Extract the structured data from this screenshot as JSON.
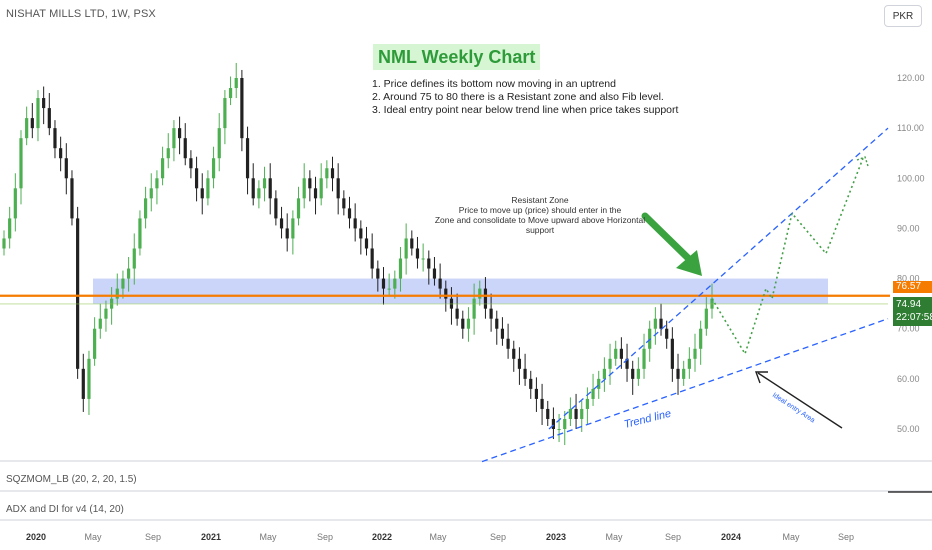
{
  "header": {
    "symbol": "NISHAT MILLS LTD, 1W, PSX",
    "currency": "PKR"
  },
  "annotations": {
    "title": "NML Weekly Chart",
    "notes": [
      "1. Price defines its bottom now moving in an uptrend",
      "2. Around 75 to 80 there is a Resistant zone and also Fib level.",
      "3. Ideal entry point near below trend line when price takes support"
    ],
    "zone_note": [
      "Resistant Zone",
      "Price to move up (price) should enter in the",
      "Zone and consolidate to Move upward above Horizontal support"
    ],
    "trend_line_label": "Trend line",
    "entry_label": "Ideal entry Area"
  },
  "price_badges": {
    "horizontal_level": "76.57",
    "last_price": "74.94",
    "countdown": "22:07:58"
  },
  "indicators": [
    "SQZMOM_LB (20, 2, 20, 1.5)",
    "ADX and DI for v4 (14, 20)"
  ],
  "colors": {
    "up": "#4caf50",
    "down": "#212121",
    "zone": "#c5cff8",
    "horizontal_line": "#f57c00",
    "trend_line": "#2962ff",
    "projection": "#43a047",
    "title_bg": "#d6f5d3"
  },
  "chart_data": {
    "type": "candlestick",
    "title": "NML Weekly Chart",
    "x_tick_labels": [
      "2020",
      "May",
      "Sep",
      "2021",
      "May",
      "Sep",
      "2022",
      "May",
      "Sep",
      "2023",
      "May",
      "Sep",
      "2024",
      "May",
      "Sep"
    ],
    "y_tick_labels": [
      "120.00",
      "110.00",
      "100.00",
      "90.00",
      "80.00",
      "70.00",
      "60.00",
      "50.00"
    ],
    "ylim": [
      44,
      128
    ],
    "weekly_closes": [
      88,
      92,
      98,
      108,
      112,
      110,
      116,
      114,
      110,
      106,
      104,
      100,
      92,
      62,
      56,
      64,
      70,
      72,
      74,
      76,
      78,
      80,
      82,
      86,
      92,
      96,
      98,
      100,
      104,
      106,
      110,
      108,
      104,
      102,
      98,
      96,
      100,
      104,
      110,
      116,
      118,
      120,
      108,
      100,
      96,
      98,
      100,
      96,
      92,
      90,
      88,
      92,
      96,
      100,
      98,
      96,
      100,
      102,
      100,
      96,
      94,
      92,
      90,
      88,
      86,
      82,
      80,
      78,
      78,
      80,
      84,
      88,
      86,
      84,
      84,
      82,
      80,
      78,
      76,
      74,
      72,
      70,
      72,
      76,
      78,
      74,
      72,
      70,
      68,
      66,
      64,
      62,
      60,
      58,
      56,
      54,
      52,
      50,
      50,
      52,
      54,
      52,
      54,
      56,
      58,
      60,
      62,
      64,
      66,
      64,
      62,
      60,
      62,
      66,
      70,
      72,
      70,
      68,
      62,
      60,
      62,
      64,
      66,
      70,
      74,
      76
    ],
    "resistance_zone": [
      75,
      80
    ],
    "horizontal_level": 76.57,
    "last_price": 74.94,
    "trend_lines": [
      {
        "name": "upper trend line",
        "from": [
          "2022-12",
          50
        ],
        "to": [
          "2024-11",
          110
        ]
      },
      {
        "name": "Trend line",
        "from": [
          "2022-11",
          43
        ],
        "to": [
          "2024-11",
          72
        ]
      }
    ],
    "projection_path": [
      76,
      65,
      78,
      76,
      93,
      85,
      104
    ],
    "legend": "none",
    "grid": false
  }
}
